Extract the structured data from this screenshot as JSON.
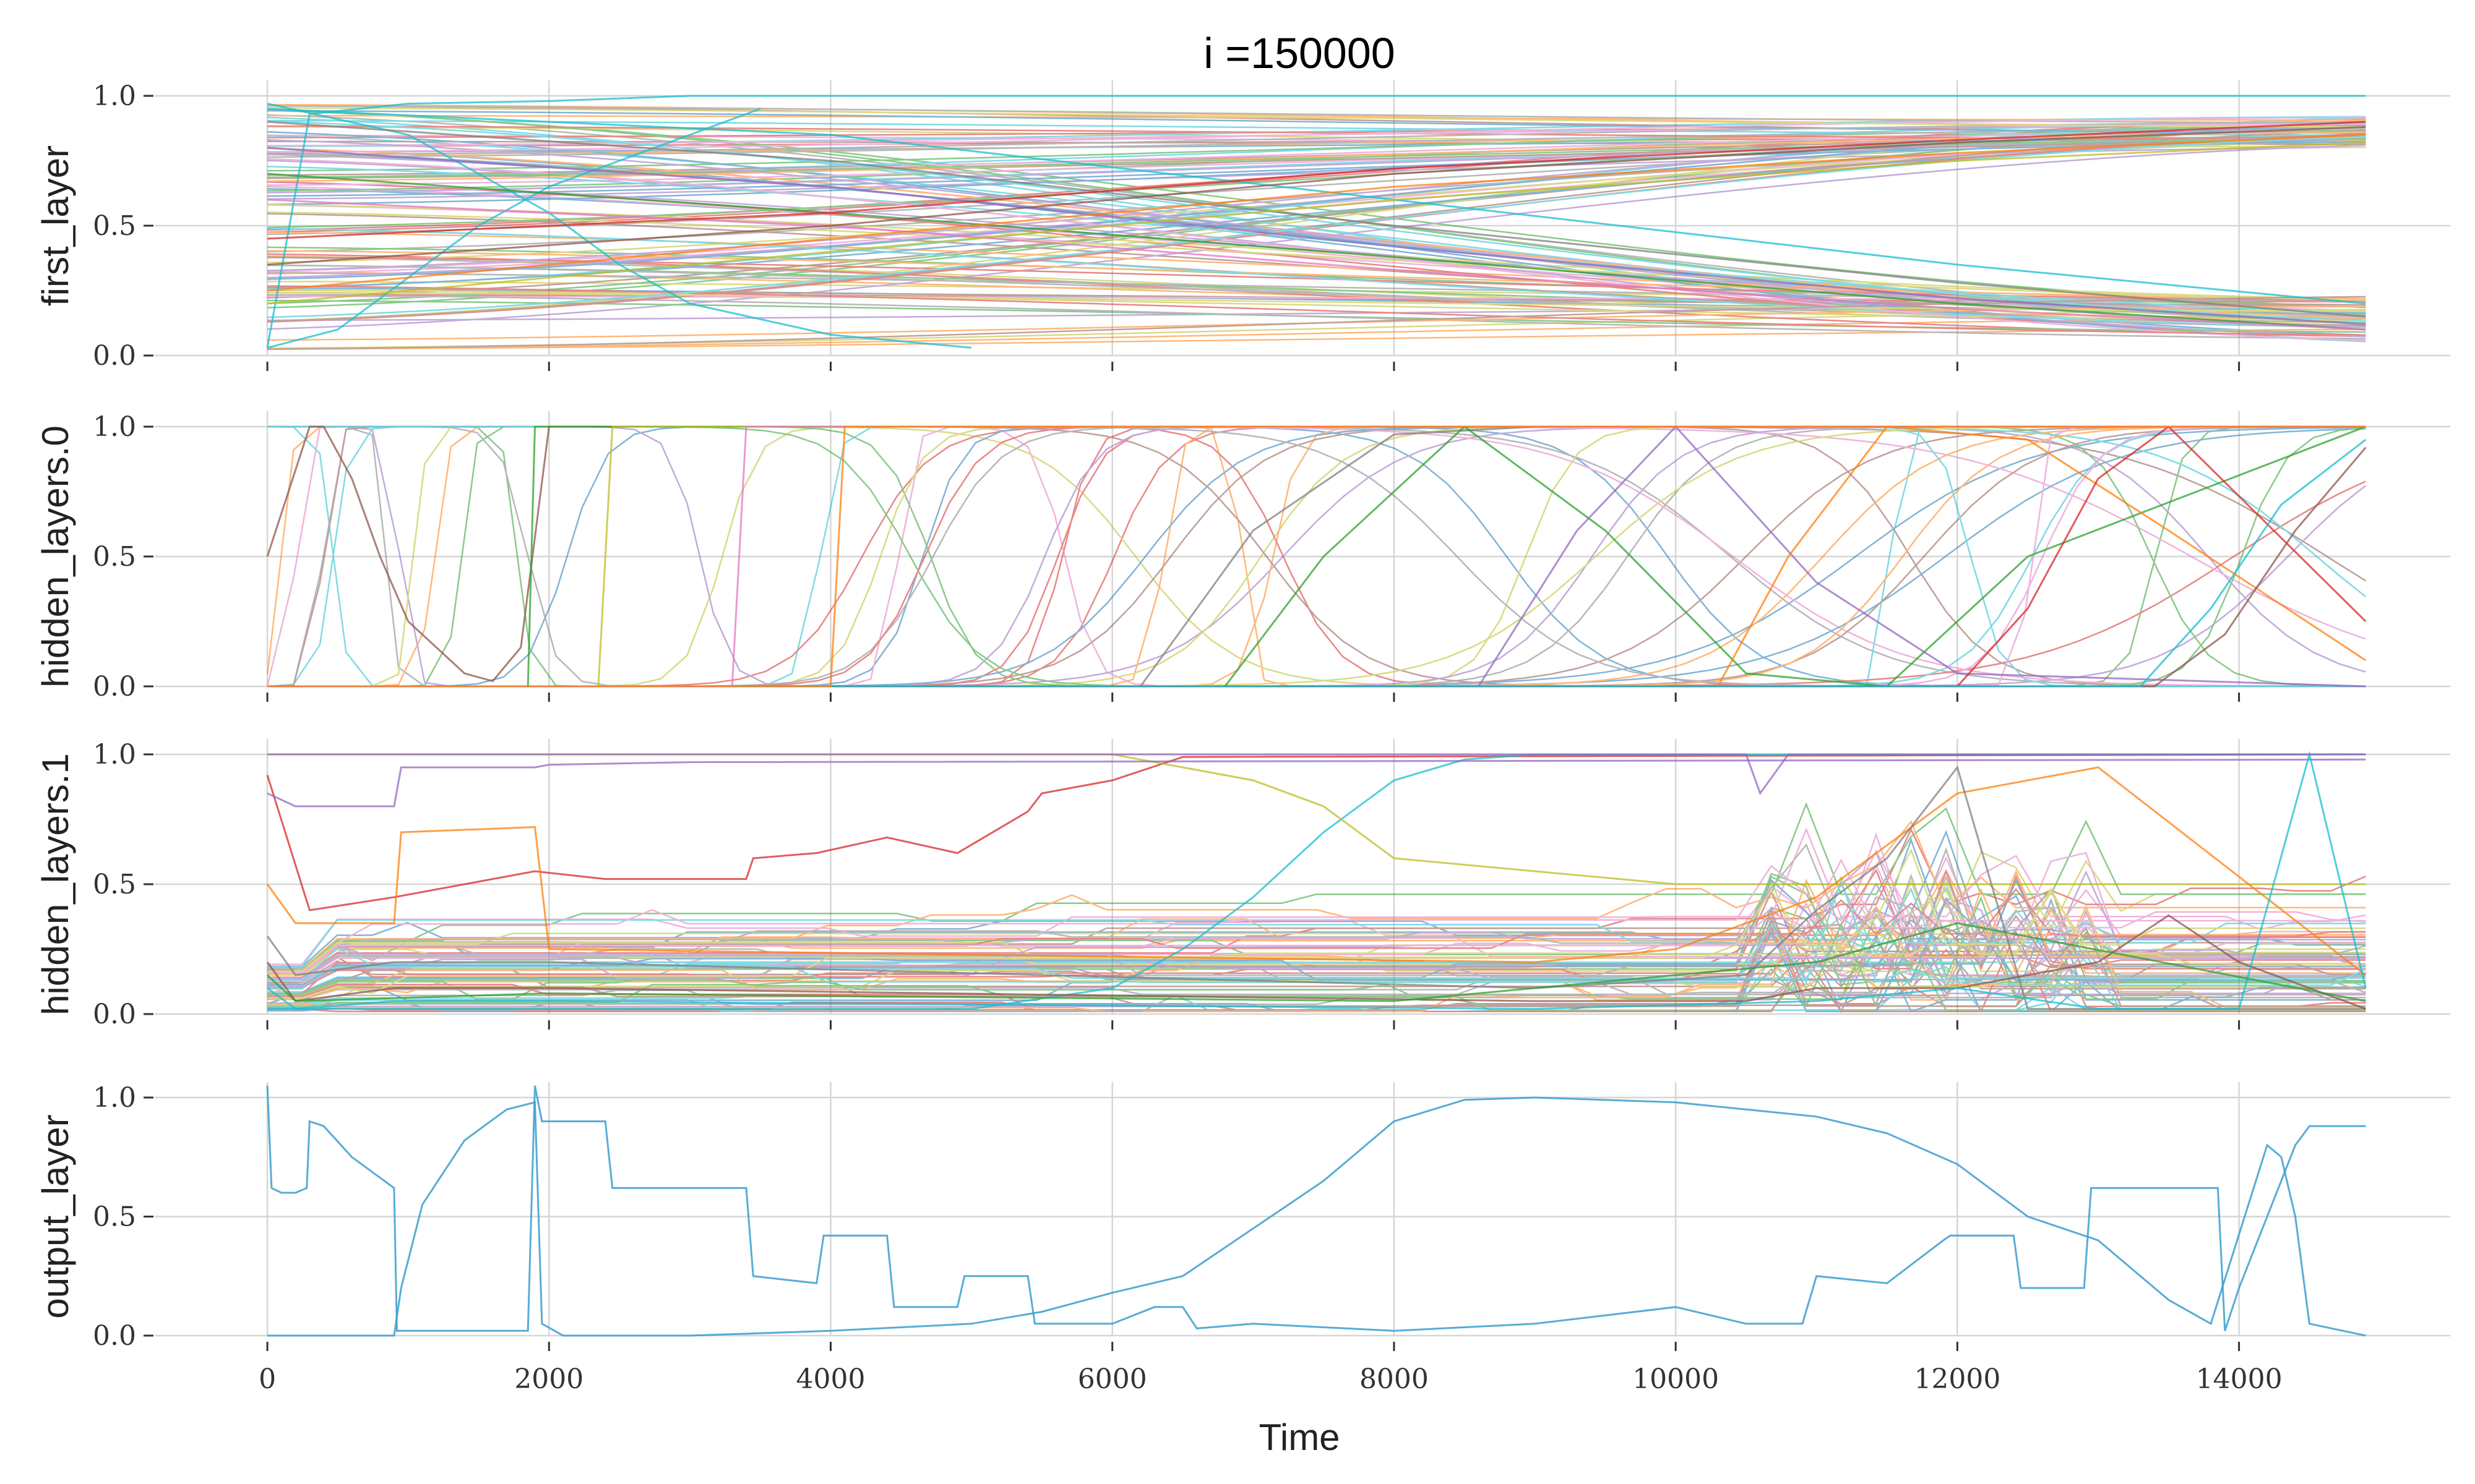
{
  "chart_data": {
    "type": "line",
    "title": "i =150000",
    "xlabel": "Time",
    "xlim": [
      -800,
      15500
    ],
    "x_ticks": [
      0,
      2000,
      4000,
      6000,
      8000,
      10000,
      12000,
      14000
    ],
    "x_tick_labels": [
      "0",
      "2000",
      "4000",
      "6000",
      "8000",
      "10000",
      "12000",
      "14000"
    ],
    "grid": true,
    "palette": [
      "#1f77b4",
      "#ff7f0e",
      "#2ca02c",
      "#d62728",
      "#9467bd",
      "#8c564b",
      "#e377c2",
      "#7f7f7f",
      "#bcbd22",
      "#17becf"
    ],
    "panels": [
      {
        "ylabel": "first_layer",
        "ylim": [
          0,
          1
        ],
        "y_ticks": [
          0,
          0.5,
          1
        ],
        "y_tick_labels": [
          "0.0",
          "0.5",
          "1.0"
        ],
        "series_count": 160,
        "series": [
          {
            "x": [
              0,
              300,
              1000,
              2000,
              3000,
              5000,
              8000,
              11000,
              14900
            ],
            "y": [
              0.03,
              0.93,
              0.97,
              0.98,
              1.0,
              1.0,
              1.0,
              1.0,
              1.0
            ],
            "color": "#17becf"
          },
          {
            "x": [
              0,
              500,
              1000,
              1500,
              2000,
              2500,
              3000,
              3500
            ],
            "y": [
              0.03,
              0.1,
              0.3,
              0.5,
              0.65,
              0.75,
              0.85,
              0.95
            ],
            "color": "#17becf"
          },
          {
            "x": [
              0,
              1000,
              2000,
              2500,
              3000,
              4000,
              5000
            ],
            "y": [
              0.97,
              0.85,
              0.55,
              0.35,
              0.2,
              0.08,
              0.03
            ],
            "color": "#17becf"
          },
          {
            "x": [
              0,
              4000,
              8000,
              12000,
              14900
            ],
            "y": [
              0.95,
              0.85,
              0.6,
              0.35,
              0.2
            ],
            "color": "#17becf"
          },
          {
            "x": [
              0,
              4000,
              8000,
              12000,
              14900
            ],
            "y": [
              0.9,
              0.75,
              0.5,
              0.28,
              0.15
            ],
            "color": "#7f7f7f"
          },
          {
            "x": [
              0,
              4000,
              8000,
              12000,
              14900
            ],
            "y": [
              0.8,
              0.65,
              0.42,
              0.22,
              0.12
            ],
            "color": "#9467bd"
          },
          {
            "x": [
              0,
              4000,
              8000,
              12000,
              14900
            ],
            "y": [
              0.7,
              0.55,
              0.38,
              0.2,
              0.1
            ],
            "color": "#2ca02c"
          },
          {
            "x": [
              0,
              4000,
              8000,
              12000,
              14900
            ],
            "y": [
              0.6,
              0.5,
              0.33,
              0.18,
              0.1
            ],
            "color": "#e377c2"
          },
          {
            "x": [
              0,
              4000,
              8000,
              12000,
              14900
            ],
            "y": [
              0.35,
              0.5,
              0.7,
              0.82,
              0.88
            ],
            "color": "#8c564b"
          },
          {
            "x": [
              0,
              4000,
              8000,
              12000,
              14900
            ],
            "y": [
              0.25,
              0.45,
              0.65,
              0.78,
              0.85
            ],
            "color": "#ff7f0e"
          },
          {
            "x": [
              0,
              4000,
              8000,
              12000,
              14900
            ],
            "y": [
              0.45,
              0.55,
              0.72,
              0.83,
              0.9
            ],
            "color": "#d62728"
          },
          {
            "x": [
              0,
              4000,
              8000,
              12000,
              14900
            ],
            "y": [
              0.2,
              0.4,
              0.6,
              0.75,
              0.82
            ],
            "color": "#bcbd22"
          }
        ]
      },
      {
        "ylabel": "hidden_layers.0",
        "ylim": [
          0,
          1
        ],
        "y_ticks": [
          0,
          0.5,
          1
        ],
        "y_tick_labels": [
          "0.0",
          "0.5",
          "1.0"
        ],
        "series_count": 100,
        "series": [
          {
            "x": [
              0,
              300,
              400,
              600,
              800,
              1000,
              1400,
              1600,
              1800,
              2000,
              14900
            ],
            "y": [
              0.5,
              1.0,
              1.0,
              0.8,
              0.5,
              0.25,
              0.05,
              0.02,
              0.15,
              1.0,
              1.0
            ],
            "color": "#8c564b"
          },
          {
            "x": [
              0,
              1850,
              1900,
              14900
            ],
            "y": [
              0.0,
              0.0,
              1.0,
              1.0
            ],
            "color": "#2ca02c"
          },
          {
            "x": [
              0,
              2350,
              2450,
              14900
            ],
            "y": [
              0.0,
              0.0,
              1.0,
              1.0
            ],
            "color": "#bcbd22"
          },
          {
            "x": [
              0,
              6200,
              7000,
              8000,
              9000,
              10000,
              14900
            ],
            "y": [
              0.0,
              0.0,
              0.6,
              0.97,
              1.0,
              1.0,
              1.0
            ],
            "color": "#7f7f7f"
          },
          {
            "x": [
              0,
              6800,
              7500,
              8500,
              9500,
              10500,
              11500,
              12500,
              14900
            ],
            "y": [
              0.0,
              0.0,
              0.5,
              1.0,
              0.6,
              0.05,
              0.0,
              0.5,
              1.0
            ],
            "color": "#2ca02c"
          },
          {
            "x": [
              0,
              8600,
              9300,
              10000,
              11000,
              12000,
              14900
            ],
            "y": [
              0.0,
              0.0,
              0.6,
              1.0,
              0.4,
              0.05,
              0.0
            ],
            "color": "#9467bd"
          },
          {
            "x": [
              0,
              10300,
              10800,
              11500,
              12500,
              13500,
              14900
            ],
            "y": [
              0.0,
              0.0,
              0.5,
              1.0,
              0.95,
              0.6,
              0.1
            ],
            "color": "#ff7f0e"
          },
          {
            "x": [
              0,
              12000,
              12500,
              13000,
              13500,
              14900
            ],
            "y": [
              0.0,
              0.0,
              0.3,
              0.8,
              1.0,
              0.25
            ],
            "color": "#d62728"
          },
          {
            "x": [
              0,
              13400,
              13900,
              14400,
              14900
            ],
            "y": [
              0.0,
              0.0,
              0.2,
              0.6,
              0.92
            ],
            "color": "#8c564b"
          },
          {
            "x": [
              0,
              13300,
              13800,
              14300,
              14900
            ],
            "y": [
              0.0,
              0.0,
              0.3,
              0.7,
              0.95
            ],
            "color": "#17becf"
          },
          {
            "x": [
              0,
              3300,
              3400,
              14900
            ],
            "y": [
              0.0,
              0.0,
              1.0,
              1.0
            ],
            "color": "#e377c2"
          },
          {
            "x": [
              0,
              4000,
              4100,
              14900
            ],
            "y": [
              0.0,
              0.0,
              1.0,
              1.0
            ],
            "color": "#ff7f0e"
          }
        ]
      },
      {
        "ylabel": "hidden_layers.1",
        "ylim": [
          0,
          1
        ],
        "y_ticks": [
          0,
          0.5,
          1
        ],
        "y_tick_labels": [
          "0.0",
          "0.5",
          "1.0"
        ],
        "series_count": 100,
        "series": [
          {
            "x": [
              0,
              300,
              900,
              1900,
              2400,
              2500,
              3400,
              3450,
              3900,
              4400,
              4900,
              5400,
              5500,
              6000,
              6500,
              14900
            ],
            "y": [
              0.92,
              0.4,
              0.45,
              0.55,
              0.52,
              0.52,
              0.52,
              0.6,
              0.62,
              0.68,
              0.62,
              0.78,
              0.85,
              0.9,
              0.99,
              1.0
            ],
            "color": "#d62728"
          },
          {
            "x": [
              0,
              5000,
              6000,
              6500,
              7000,
              7500,
              8000,
              8500,
              9000,
              14900
            ],
            "y": [
              0.02,
              0.02,
              0.1,
              0.25,
              0.45,
              0.7,
              0.9,
              0.98,
              1.0,
              1.0
            ],
            "color": "#17becf"
          },
          {
            "x": [
              0,
              2000,
              4000,
              6000,
              7000,
              7500,
              8000,
              9000,
              10000,
              14900
            ],
            "y": [
              1.0,
              1.0,
              1.0,
              1.0,
              0.9,
              0.8,
              0.6,
              0.55,
              0.5,
              0.5
            ],
            "color": "#bcbd22"
          },
          {
            "x": [
              0,
              200,
              900,
              950,
              1900,
              2000,
              3000,
              14900
            ],
            "y": [
              0.85,
              0.8,
              0.8,
              0.95,
              0.95,
              0.96,
              0.97,
              0.98
            ],
            "color": "#9467bd"
          },
          {
            "x": [
              0,
              200,
              900,
              950,
              1900,
              2000,
              9000,
              10000,
              11000,
              12000,
              13000,
              14900
            ],
            "y": [
              0.5,
              0.35,
              0.35,
              0.7,
              0.72,
              0.25,
              0.2,
              0.25,
              0.45,
              0.85,
              0.95,
              0.15
            ],
            "color": "#ff7f0e"
          },
          {
            "x": [
              0,
              200,
              900,
              2000,
              9000,
              10500,
              11000,
              11500,
              12000,
              12500,
              13000,
              14900
            ],
            "y": [
              0.3,
              0.15,
              0.2,
              0.2,
              0.1,
              0.15,
              0.4,
              0.6,
              0.95,
              0.02,
              0.02,
              0.02
            ],
            "color": "#7f7f7f"
          },
          {
            "x": [
              0,
              200,
              900,
              2000,
              9000,
              10500,
              11000,
              12000,
              13000,
              13500,
              14000,
              14900
            ],
            "y": [
              0.2,
              0.05,
              0.1,
              0.1,
              0.05,
              0.05,
              0.1,
              0.1,
              0.2,
              0.38,
              0.2,
              0.02
            ],
            "color": "#8c564b"
          },
          {
            "x": [
              0,
              200,
              900,
              2000,
              9000,
              11000,
              12000,
              13000,
              14000,
              14500,
              14900
            ],
            "y": [
              0.1,
              0.02,
              0.05,
              0.05,
              0.02,
              0.05,
              0.1,
              0.02,
              0.02,
              1.0,
              0.1
            ],
            "color": "#17becf"
          },
          {
            "x": [
              0,
              2000,
              9000,
              10500,
              10600,
              10800,
              14900
            ],
            "y": [
              1.0,
              1.0,
              1.0,
              1.0,
              0.85,
              1.0,
              1.0
            ],
            "color": "#9467bd"
          },
          {
            "x": [
              0,
              200,
              2000,
              8000,
              11000,
              12000,
              14900
            ],
            "y": [
              0.15,
              0.05,
              0.08,
              0.05,
              0.2,
              0.35,
              0.05
            ],
            "color": "#2ca02c"
          }
        ]
      },
      {
        "ylabel": "output_layer",
        "ylim": [
          0,
          1
        ],
        "y_ticks": [
          0,
          0.5,
          1
        ],
        "y_tick_labels": [
          "0.0",
          "0.5",
          "1.0"
        ],
        "series_count": 2,
        "series": [
          {
            "x": [
              0,
              30,
              100,
              200,
              280,
              300,
              400,
              600,
              900,
              920,
              1000,
              1850,
              1900,
              1950,
              2400,
              2450,
              3400,
              3450,
              3900,
              3950,
              4400,
              4450,
              4900,
              4950,
              5400,
              5450,
              6000,
              6300,
              6500,
              6600,
              7000,
              8000,
              9000,
              10000,
              10500,
              10900,
              11000,
              11500,
              11900,
              11950,
              12400,
              12450,
              12900,
              12950,
              13850,
              13900,
              14000,
              14200,
              14400,
              14500,
              14900
            ],
            "y": [
              1.05,
              0.62,
              0.6,
              0.6,
              0.62,
              0.9,
              0.88,
              0.75,
              0.62,
              0.02,
              0.02,
              0.02,
              1.05,
              0.9,
              0.9,
              0.62,
              0.62,
              0.25,
              0.22,
              0.42,
              0.42,
              0.12,
              0.12,
              0.25,
              0.25,
              0.05,
              0.05,
              0.12,
              0.12,
              0.03,
              0.05,
              0.02,
              0.05,
              0.12,
              0.05,
              0.05,
              0.25,
              0.22,
              0.4,
              0.42,
              0.42,
              0.2,
              0.2,
              0.62,
              0.62,
              0.02,
              0.2,
              0.5,
              0.8,
              0.88,
              0.88
            ],
            "color": "#3a9ecf"
          },
          {
            "x": [
              0,
              900,
              950,
              1100,
              1400,
              1700,
              1900,
              1950,
              2100,
              3000,
              4000,
              5000,
              5500,
              6000,
              6500,
              7000,
              7500,
              8000,
              8500,
              9000,
              10000,
              10500,
              11000,
              11500,
              12000,
              12500,
              13000,
              13500,
              13800,
              14200,
              14300,
              14400,
              14500,
              14900
            ],
            "y": [
              0.0,
              0.0,
              0.2,
              0.55,
              0.82,
              0.95,
              0.98,
              0.05,
              0.0,
              0.0,
              0.02,
              0.05,
              0.1,
              0.18,
              0.25,
              0.45,
              0.65,
              0.9,
              0.99,
              1.0,
              0.98,
              0.95,
              0.92,
              0.85,
              0.72,
              0.5,
              0.4,
              0.15,
              0.05,
              0.8,
              0.75,
              0.5,
              0.05,
              0.0
            ],
            "color": "#3a9ecf"
          }
        ]
      }
    ]
  }
}
